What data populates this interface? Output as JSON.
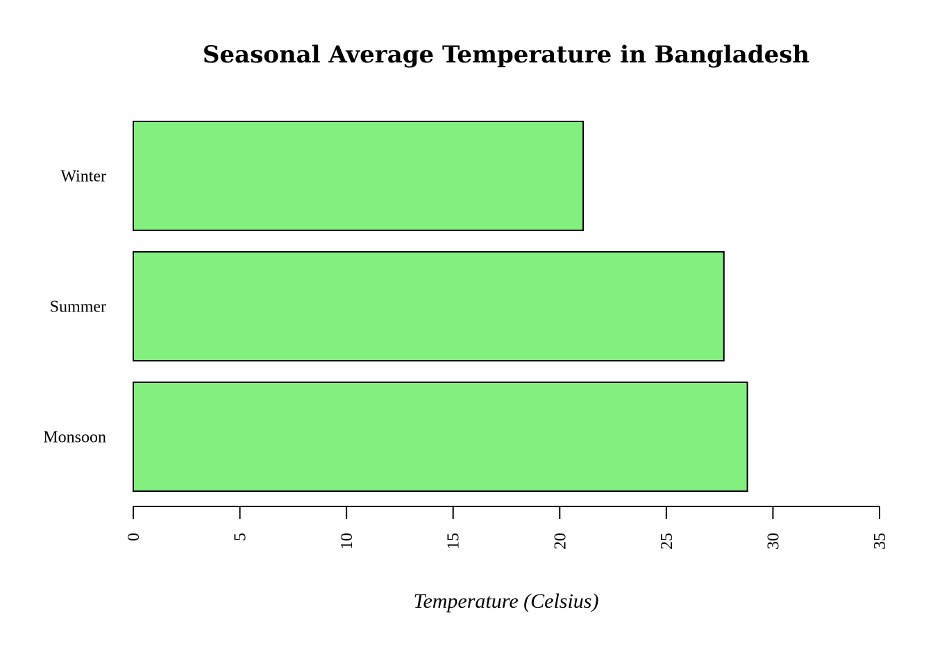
{
  "chart_data": {
    "type": "bar",
    "orientation": "horizontal",
    "title": "Seasonal Average Temperature in Bangladesh",
    "xlabel": "Temperature (Celsius)",
    "ylabel": "",
    "categories": [
      "Winter",
      "Summer",
      "Monsoon"
    ],
    "values": [
      21.1,
      27.7,
      28.8
    ],
    "xlim": [
      0,
      35
    ],
    "xticks": [
      0,
      5,
      10,
      15,
      20,
      25,
      30,
      35
    ],
    "tick_label_rotation": "vertical",
    "bar_color": "#83ef7f",
    "grid": false,
    "legend": "none"
  }
}
